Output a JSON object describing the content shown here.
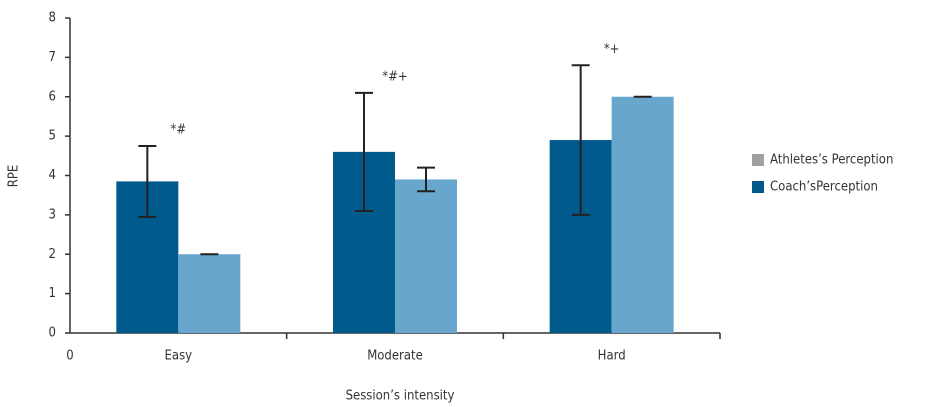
{
  "chart_data": {
    "type": "bar",
    "categories": [
      "Easy",
      "Moderate",
      "Hard"
    ],
    "series": [
      {
        "name": "Coach’sPerception",
        "color": "#005a8c",
        "legend_color": "#005a8c",
        "values": [
          3.85,
          4.6,
          4.9
        ],
        "errors": [
          0.9,
          1.5,
          1.9
        ]
      },
      {
        "name": "Athletes’s Perception",
        "color": "#68a6cd",
        "legend_color": "#a0a0a0",
        "values": [
          2.0,
          3.9,
          6.0
        ],
        "errors": [
          0.0,
          0.3,
          0.0
        ]
      }
    ],
    "annotations": [
      "*#",
      "*#+",
      "*+"
    ],
    "x_label": "Session’s intensity",
    "y_label": "RPE",
    "x_origin_label": "0",
    "ylim": [
      0,
      8
    ],
    "yticks": [
      0,
      1,
      2,
      3,
      4,
      5,
      6,
      7,
      8
    ]
  }
}
